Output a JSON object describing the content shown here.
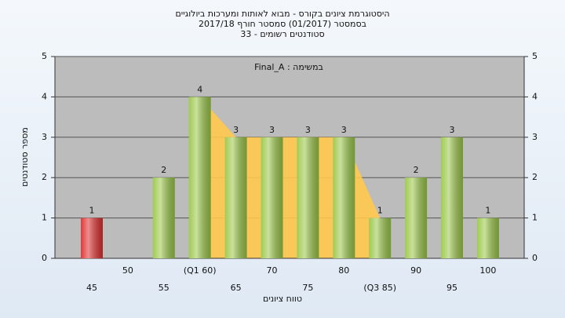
{
  "chart_data": {
    "type": "bar",
    "title_lines": [
      "היסטוגרמת ציונים בקורס - מבוא לאותות ומערכות ביולוגיים",
      "בסמסטר  (01/2017)  סמסטר חורף 2017/18",
      "סטודנטים רשומים - 33"
    ],
    "annotation": "Final_A : במשימה",
    "x_label": "טווח ציונים",
    "y_label": "מספר סטודנטים",
    "categories": [
      "45",
      "50",
      "55",
      "(Q1 60)",
      "65",
      "70",
      "75",
      "80",
      "(Q3 85)",
      "90",
      "95",
      "100"
    ],
    "values": [
      1,
      0,
      2,
      4,
      3,
      3,
      3,
      3,
      1,
      2,
      3,
      1
    ],
    "colors": [
      "#e03030",
      "#9cc84a",
      "#9cc84a",
      "#9cc84a",
      "#9cc84a",
      "#9cc84a",
      "#9cc84a",
      "#9cc84a",
      "#9cc84a",
      "#9cc84a",
      "#9cc84a",
      "#9cc84a"
    ],
    "area_color": "#ffc94d",
    "ylim": [
      0,
      5
    ],
    "yticks": [
      0,
      1,
      2,
      3,
      4,
      5
    ],
    "grid": true
  }
}
